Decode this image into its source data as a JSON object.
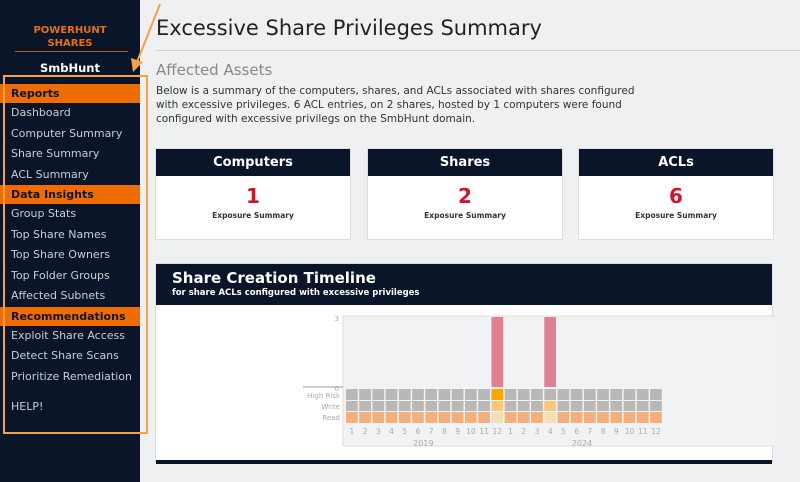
{
  "sidebar": {
    "brand": "POWERHUNT SHARES",
    "domain": "SmbHunt",
    "sections": [
      {
        "title": "Reports",
        "items": [
          "Dashboard",
          "Computer Summary",
          "Share Summary",
          "ACL Summary"
        ]
      },
      {
        "title": "Data Insights",
        "items": [
          "Group Stats",
          "Top Share Names",
          "Top Share Owners",
          "Top Folder Groups",
          "Affected Subnets"
        ]
      },
      {
        "title": "Recommendations",
        "items": [
          "Exploit Share Access",
          "Detect Share Scans",
          "Prioritize Remediation"
        ]
      }
    ],
    "help": "HELP!"
  },
  "main": {
    "title": "Excessive Share Privileges Summary",
    "subtitle": "Affected Assets",
    "description": "Below is a summary of the computers, shares, and ACLs associated with shares configured with excessive privileges. 6 ACL entries, on 2 shares, hosted by 1 computers were found configured with excessive privilegs on the SmbHunt domain.",
    "cards": [
      {
        "title": "Computers",
        "value": "1",
        "label": "Exposure Summary"
      },
      {
        "title": "Shares",
        "value": "2",
        "label": "Exposure Summary"
      },
      {
        "title": "ACLs",
        "value": "6",
        "label": "Exposure Summary"
      }
    ],
    "timeline": {
      "title": "Share Creation Timeline",
      "subtitle": "for share ACLs configured with excessive privileges"
    }
  },
  "colors": {
    "sidebar": "#0b1529",
    "accent": "#f06c00",
    "value": "#d0142c",
    "bar": "#e08090",
    "cell_empty": "#b8b8b8",
    "high_risk": "#ffa500",
    "write": "#f8c978",
    "read": "#f4b07c",
    "read_active": "#f5dfb8"
  },
  "chart_data": {
    "type": "bar",
    "years": [
      "2019",
      "2024"
    ],
    "months": [
      "1",
      "2",
      "3",
      "4",
      "5",
      "6",
      "7",
      "8",
      "9",
      "10",
      "11",
      "12",
      "1",
      "2",
      "3",
      "4",
      "5",
      "6",
      "7",
      "8",
      "9",
      "10",
      "11",
      "12"
    ],
    "values": [
      0,
      0,
      0,
      0,
      0,
      0,
      0,
      0,
      0,
      0,
      0,
      3,
      0,
      0,
      0,
      3,
      0,
      0,
      0,
      0,
      0,
      0,
      0,
      0
    ],
    "ylim": [
      0,
      3
    ],
    "yticks": [
      "0",
      "3"
    ],
    "heatmap_rows": [
      "High Risk",
      "Write",
      "Read"
    ],
    "high_risk": [
      0,
      0,
      0,
      0,
      0,
      0,
      0,
      0,
      0,
      0,
      0,
      1,
      0,
      0,
      0,
      0,
      0,
      0,
      0,
      0,
      0,
      0,
      0,
      0
    ],
    "write": [
      0,
      0,
      0,
      0,
      0,
      0,
      0,
      0,
      0,
      0,
      0,
      1,
      0,
      0,
      0,
      1,
      0,
      0,
      0,
      0,
      0,
      0,
      0,
      0
    ],
    "read_active": [
      0,
      0,
      0,
      0,
      0,
      0,
      0,
      0,
      0,
      0,
      0,
      1,
      0,
      0,
      0,
      1,
      0,
      0,
      0,
      0,
      0,
      0,
      0,
      0
    ]
  }
}
